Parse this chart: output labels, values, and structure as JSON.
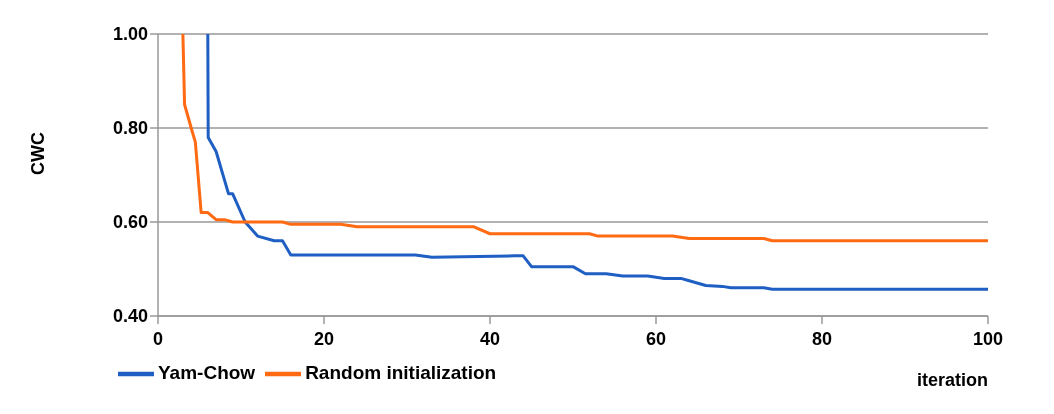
{
  "chart_data": {
    "type": "line",
    "ylabel": "CWC",
    "xlabel": "iteration",
    "xlim": [
      0,
      100
    ],
    "xticks": [
      0,
      20,
      40,
      60,
      80,
      100
    ],
    "ylim": [
      0.4,
      1.0
    ],
    "yticks": [
      {
        "value": 0.4,
        "label": "0.40"
      },
      {
        "value": 0.6,
        "label": "0.60"
      },
      {
        "value": 0.8,
        "label": "0.80"
      },
      {
        "value": 1.0,
        "label": "1.00"
      }
    ],
    "grid": "y",
    "legend": "bottom left",
    "marker": "none",
    "line_style": "solid",
    "series": [
      {
        "name": "Yam-Chow",
        "color": "#1f5fc4",
        "x": [
          6,
          6.05,
          7,
          8.5,
          9,
          10.5,
          12,
          14,
          15,
          16,
          31,
          33,
          43,
          44,
          45,
          50,
          51.5,
          54,
          56,
          59,
          61,
          63,
          64,
          66,
          68,
          69,
          73,
          74,
          100
        ],
        "values": [
          1.0,
          0.78,
          0.75,
          0.66,
          0.66,
          0.6,
          0.57,
          0.56,
          0.56,
          0.53,
          0.53,
          0.525,
          0.528,
          0.528,
          0.505,
          0.505,
          0.49,
          0.49,
          0.485,
          0.485,
          0.48,
          0.48,
          0.475,
          0.465,
          0.463,
          0.46,
          0.46,
          0.457,
          0.457
        ]
      },
      {
        "name": "Random initialization",
        "color": "#ff6a13",
        "x": [
          3,
          3.2,
          4,
          4.5,
          5.2,
          6,
          7,
          8,
          9,
          15,
          16,
          22,
          24,
          38,
          40,
          52,
          53,
          62,
          64,
          73,
          74,
          100
        ],
        "values": [
          1.0,
          0.85,
          0.8,
          0.77,
          0.62,
          0.62,
          0.605,
          0.605,
          0.6,
          0.6,
          0.595,
          0.595,
          0.59,
          0.59,
          0.575,
          0.575,
          0.57,
          0.57,
          0.565,
          0.565,
          0.56,
          0.56
        ]
      }
    ]
  }
}
